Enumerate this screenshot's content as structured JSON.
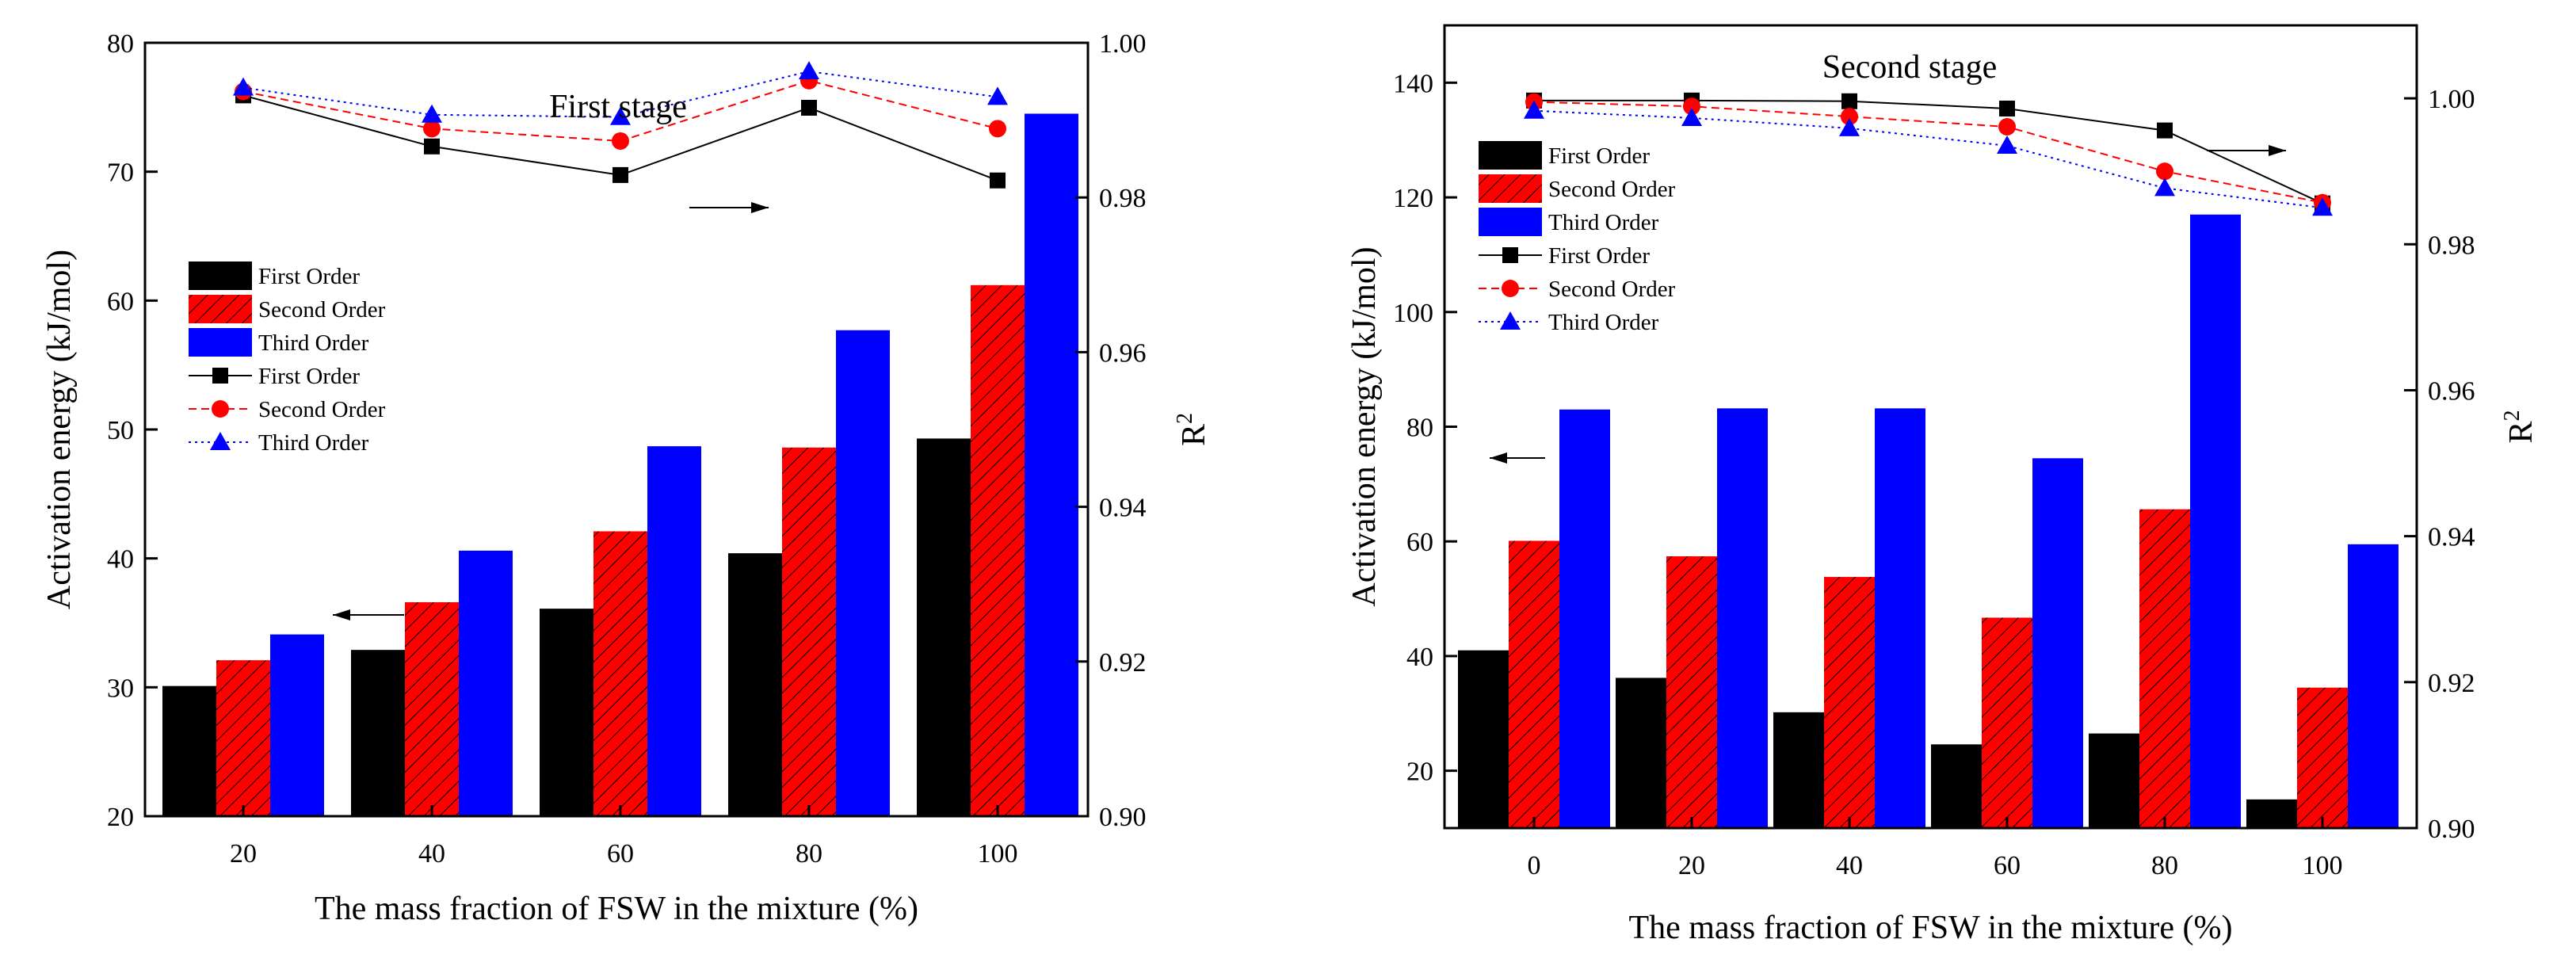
{
  "chart_data": [
    {
      "type": "bar+line",
      "title": "First stage",
      "xlabel": "The mass fraction of FSW in the mixture (%)",
      "ylabel": "Activation energy (kJ/mol)",
      "y2label": "R",
      "y2label_sup": "2",
      "categories": [
        "20",
        "40",
        "60",
        "80",
        "100"
      ],
      "ylim": [
        20,
        80
      ],
      "yticks": [
        "20",
        "30",
        "40",
        "50",
        "60",
        "70",
        "80"
      ],
      "y2lim": [
        0.9,
        1.0
      ],
      "y2ticks": [
        "0.90",
        "0.92",
        "0.94",
        "0.96",
        "0.98",
        "1.00"
      ],
      "bar_series": [
        {
          "name": "First Order",
          "values": [
            30.1,
            32.9,
            36.1,
            40.4,
            49.3
          ],
          "color": "#000000",
          "hatch": false
        },
        {
          "name": "Second Order",
          "values": [
            32.1,
            36.6,
            42.1,
            48.6,
            61.2
          ],
          "color": "#ff0000",
          "hatch": true
        },
        {
          "name": "Third Order",
          "values": [
            34.1,
            40.6,
            48.7,
            57.7,
            74.5
          ],
          "color": "#0000ff",
          "hatch": false
        }
      ],
      "line_series": [
        {
          "name": "First Order",
          "values": [
            0.9932,
            0.9866,
            0.9829,
            0.9916,
            0.9822
          ],
          "color": "#000000",
          "marker": "square",
          "dash": "solid"
        },
        {
          "name": "Second Order",
          "values": [
            0.9937,
            0.9889,
            0.9873,
            0.9951,
            0.9889
          ],
          "color": "#ff0000",
          "marker": "circle",
          "dash": "dashed"
        },
        {
          "name": "Third Order",
          "values": [
            0.9942,
            0.9907,
            0.9904,
            0.9963,
            0.993
          ],
          "color": "#0000ff",
          "marker": "triangle",
          "dash": "dotted"
        }
      ],
      "legend": "left"
    },
    {
      "type": "bar+line",
      "title": "Second stage",
      "xlabel": "The mass fraction of FSW in the mixture (%)",
      "ylabel": "Activation energy (kJ/mol)",
      "y2label": "R",
      "y2label_sup": "2",
      "categories": [
        "0",
        "20",
        "40",
        "60",
        "80",
        "100"
      ],
      "ylim": [
        10,
        150
      ],
      "yticks": [
        "20",
        "40",
        "60",
        "80",
        "100",
        "120",
        "140"
      ],
      "y2lim": [
        0.9,
        1.01
      ],
      "y2ticks": [
        "0.90",
        "0.92",
        "0.94",
        "0.96",
        "0.98",
        "1.00"
      ],
      "bar_series": [
        {
          "name": "First Order",
          "values": [
            41.0,
            36.2,
            30.2,
            24.6,
            26.5,
            15.0
          ],
          "color": "#000000",
          "hatch": false
        },
        {
          "name": "Second Order",
          "values": [
            60.1,
            57.4,
            53.8,
            46.7,
            65.6,
            34.5
          ],
          "color": "#ff0000",
          "hatch": true
        },
        {
          "name": "Third Order",
          "values": [
            83.0,
            83.2,
            83.2,
            74.5,
            117.0,
            59.5
          ],
          "color": "#0000ff",
          "hatch": false
        }
      ],
      "line_series": [
        {
          "name": "First Order",
          "values": [
            0.9997,
            0.9997,
            0.9996,
            0.9986,
            0.9956,
            0.9856
          ],
          "color": "#000000",
          "marker": "square",
          "dash": "solid"
        },
        {
          "name": "Second Order",
          "values": [
            0.9995,
            0.9989,
            0.9975,
            0.9961,
            0.99,
            0.9857
          ],
          "color": "#ff0000",
          "marker": "circle",
          "dash": "dashed"
        },
        {
          "name": "Third Order",
          "values": [
            0.9983,
            0.9973,
            0.9959,
            0.9935,
            0.9877,
            0.985
          ],
          "color": "#0000ff",
          "marker": "triangle",
          "dash": "dotted"
        }
      ],
      "legend": "left"
    }
  ]
}
